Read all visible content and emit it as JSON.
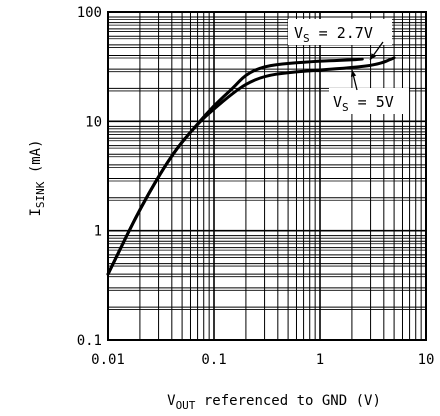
{
  "chart_data": {
    "type": "line",
    "xscale": "log",
    "yscale": "log",
    "xlim": [
      0.01,
      10
    ],
    "ylim": [
      0.1,
      100
    ],
    "grid": true,
    "xlabel": {
      "main": "V",
      "sub": "OUT",
      "rest": " referenced to GND (V)"
    },
    "ylabel": {
      "main": "I",
      "sub": "SINK",
      "rest": " (mA)"
    },
    "xticks": [
      {
        "value": 0.01,
        "label": "0.01"
      },
      {
        "value": 0.1,
        "label": "0.1"
      },
      {
        "value": 1,
        "label": "1"
      },
      {
        "value": 10,
        "label": "10"
      }
    ],
    "yticks": [
      {
        "value": 0.1,
        "label": "0.1"
      },
      {
        "value": 1,
        "label": "1"
      },
      {
        "value": 10,
        "label": "10"
      },
      {
        "value": 100,
        "label": "100"
      }
    ],
    "series": [
      {
        "name": "VS = 2.7V",
        "x": [
          0.01,
          0.02,
          0.04,
          0.07,
          0.1,
          0.15,
          0.2,
          0.3,
          0.5,
          1.0,
          1.5,
          2.5
        ],
        "y": [
          0.4,
          1.6,
          5.0,
          9.5,
          14.0,
          20.0,
          27.0,
          32.0,
          34.0,
          35.5,
          36.0,
          37.0
        ]
      },
      {
        "name": "VS = 5V",
        "x": [
          0.01,
          0.02,
          0.04,
          0.07,
          0.1,
          0.15,
          0.2,
          0.3,
          0.5,
          1.0,
          2.0,
          3.5,
          5.0
        ],
        "y": [
          0.4,
          1.6,
          5.0,
          9.5,
          13.0,
          18.0,
          22.0,
          26.0,
          28.0,
          29.5,
          31.0,
          33.0,
          38.0
        ]
      }
    ],
    "annotations": [
      {
        "main": "V",
        "sub": "S",
        "rest": " = 2.7V",
        "series": 0
      },
      {
        "main": "V",
        "sub": "S",
        "rest": " = 5V",
        "series": 1
      }
    ]
  }
}
